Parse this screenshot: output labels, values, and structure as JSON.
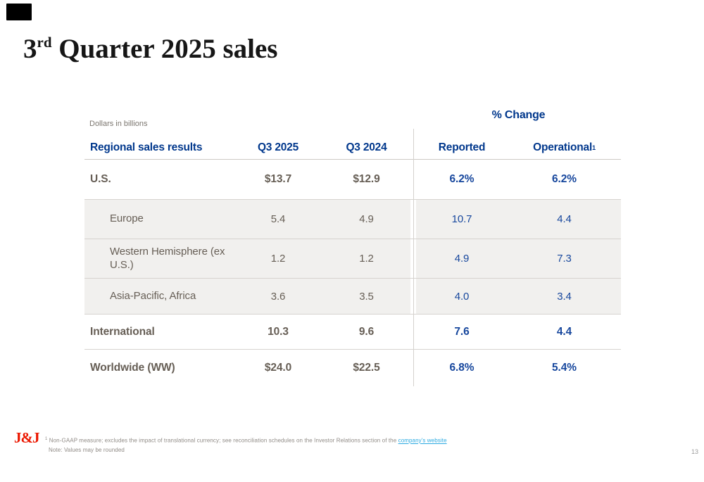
{
  "slide": {
    "title": {
      "number": "3",
      "ordinal": "rd",
      "rest": " Quarter 2025 sales"
    },
    "page_number": "13"
  },
  "table": {
    "units_note": "Dollars in billions",
    "group_header": "% Change",
    "columns": {
      "label": "Regional sales results",
      "q3_2025": "Q3 2025",
      "q3_2024": "Q3 2024",
      "reported": "Reported",
      "operational": "Operational",
      "operational_marker": "1"
    },
    "rows": [
      {
        "label": "U.S.",
        "q3_2025": "$13.7",
        "q3_2024": "$12.9",
        "reported": "6.2%",
        "operational": "6.2%"
      },
      {
        "label": "Europe",
        "q3_2025": "5.4",
        "q3_2024": "4.9",
        "reported": "10.7",
        "operational": "4.4"
      },
      {
        "label": "Western Hemisphere (ex U.S.)",
        "q3_2025": "1.2",
        "q3_2024": "1.2",
        "reported": "4.9",
        "operational": "7.3"
      },
      {
        "label": "Asia-Pacific, Africa",
        "q3_2025": "3.6",
        "q3_2024": "3.5",
        "reported": "4.0",
        "operational": "3.4"
      },
      {
        "label": "International",
        "q3_2025": "10.3",
        "q3_2024": "9.6",
        "reported": "7.6",
        "operational": "4.4"
      },
      {
        "label": "Worldwide (WW)",
        "q3_2025": "$24.0",
        "q3_2024": "$22.5",
        "reported": "6.8%",
        "operational": "5.4%"
      }
    ]
  },
  "footer": {
    "logo_text": "J&J",
    "footnote_marker": "1",
    "footnote_text": " Non-GAAP measure; excludes the impact of translational currency; see reconciliation schedules on the Investor Relations section of the ",
    "footnote_link": "company's website",
    "note": "Note: Values may be rounded"
  },
  "colors": {
    "header_blue": "#00378c",
    "value_blue": "#17479d",
    "body_warm_gray": "#665e55",
    "shaded_row_bg": "#f1f0ee",
    "grid_line": "#d6d3cf",
    "jj_red": "#eb1700",
    "link_blue": "#29a9e1",
    "title_black": "#161616"
  }
}
